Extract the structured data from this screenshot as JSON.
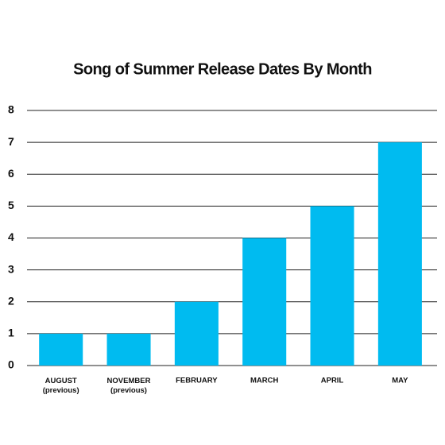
{
  "chart_data": {
    "type": "bar",
    "title": "Song of Summer Release Dates By Month",
    "categories": [
      "AUGUST\n(previous)",
      "NOVEMBER\n(previous)",
      "FEBRUARY",
      "MARCH",
      "APRIL",
      "MAY"
    ],
    "values": [
      1,
      1,
      2,
      4,
      5,
      7
    ],
    "color": "#00bbf0",
    "ylim": [
      0,
      8
    ],
    "yticks": [
      0,
      1,
      2,
      3,
      4,
      5,
      6,
      7,
      8
    ],
    "grid": true
  }
}
